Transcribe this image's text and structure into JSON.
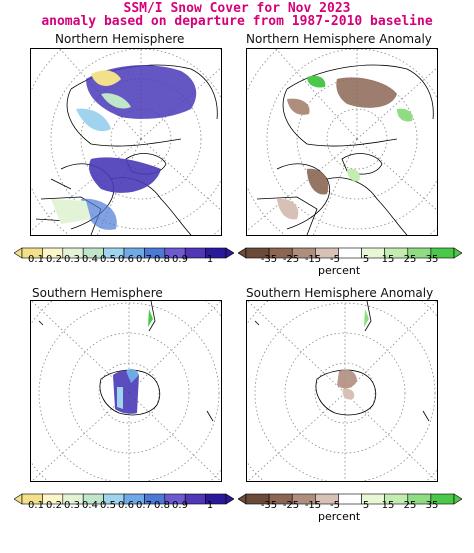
{
  "title_line1": "SSM/I Snow Cover for Nov 2023",
  "title_line2": "anomaly based on departure from 1987-2010 baseline",
  "panels": {
    "nh": "Northern Hemisphere",
    "nh_anom": "Northern Hemisphere Anomaly",
    "sh": "Southern Hemisphere",
    "sh_anom": "Southern Hemisphere Anomaly"
  },
  "cover_scale": {
    "labels": [
      "0.1",
      "0.2",
      "0.3",
      "0.4",
      "0.5",
      "0.6",
      "0.7",
      "0.8",
      "0.9",
      "1"
    ],
    "colors": [
      "#f3e08a",
      "#fdf6c8",
      "#e2f3d6",
      "#bfe6c8",
      "#9fd3ee",
      "#6fa9e6",
      "#4d79d6",
      "#6d5ad0",
      "#5236b8",
      "#2a1a9a"
    ]
  },
  "anomaly_scale": {
    "labels": [
      "-35",
      "-25",
      "-15",
      "-5",
      "5",
      "15",
      "25",
      "35"
    ],
    "colors": [
      "#6b4a3a",
      "#8c6653",
      "#b08e7e",
      "#d7c1b6",
      "#ffffff",
      "#e9f7d4",
      "#c3ecb0",
      "#8fdc82",
      "#4bc84a"
    ],
    "unit": "percent"
  },
  "colors": {
    "title": "#d6007a",
    "snow": "#4a3ab8",
    "deficit": "#8b6b5a",
    "surplus": "#55c94f"
  }
}
